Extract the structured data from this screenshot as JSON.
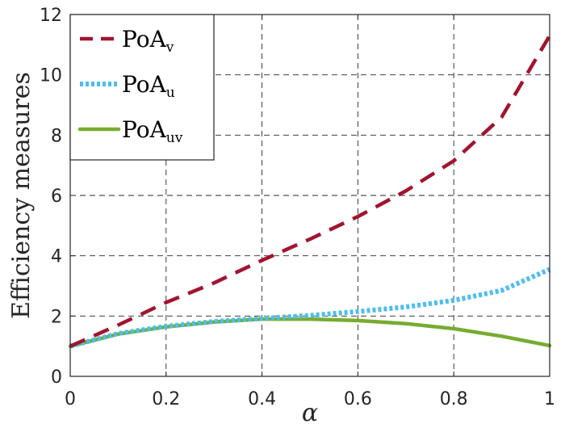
{
  "chart_data": {
    "type": "line",
    "title": "",
    "xlabel": "α",
    "ylabel": "Efficiency measures",
    "xlim": [
      0,
      1
    ],
    "ylim": [
      0,
      12
    ],
    "xticks": [
      0,
      0.2,
      0.4,
      0.6,
      0.8,
      1
    ],
    "xtick_labels": [
      "0",
      "0.2",
      "0.4",
      "0.6",
      "0.8",
      "1"
    ],
    "yticks": [
      0,
      2,
      4,
      6,
      8,
      10,
      12
    ],
    "ytick_labels": [
      "0",
      "2",
      "4",
      "6",
      "8",
      "10",
      "12"
    ],
    "grid": true,
    "legend_position": "top-left",
    "series": [
      {
        "name": "PoA_v",
        "label_main": "PoA",
        "label_sub": "v",
        "style": "dashed",
        "color": "#A2142F",
        "x": [
          0,
          0.1,
          0.2,
          0.3,
          0.4,
          0.5,
          0.6,
          0.7,
          0.8,
          0.9,
          1.0
        ],
        "y": [
          1.0,
          1.7,
          2.45,
          3.1,
          3.85,
          4.55,
          5.3,
          6.15,
          7.15,
          8.6,
          11.3
        ]
      },
      {
        "name": "PoA_u",
        "label_main": "PoA",
        "label_sub": "u",
        "style": "dotted",
        "color": "#4DBEEE",
        "x": [
          0,
          0.1,
          0.2,
          0.3,
          0.4,
          0.5,
          0.6,
          0.7,
          0.8,
          0.9,
          1.0
        ],
        "y": [
          1.0,
          1.42,
          1.66,
          1.82,
          1.92,
          2.02,
          2.15,
          2.3,
          2.52,
          2.85,
          3.55
        ]
      },
      {
        "name": "PoA_uv",
        "label_main": "PoA",
        "label_sub": "uv",
        "style": "solid",
        "color": "#77AC30",
        "x": [
          0,
          0.1,
          0.2,
          0.3,
          0.4,
          0.5,
          0.6,
          0.7,
          0.8,
          0.9,
          1.0
        ],
        "y": [
          1.0,
          1.4,
          1.64,
          1.8,
          1.9,
          1.9,
          1.85,
          1.75,
          1.58,
          1.33,
          1.02
        ]
      }
    ]
  }
}
